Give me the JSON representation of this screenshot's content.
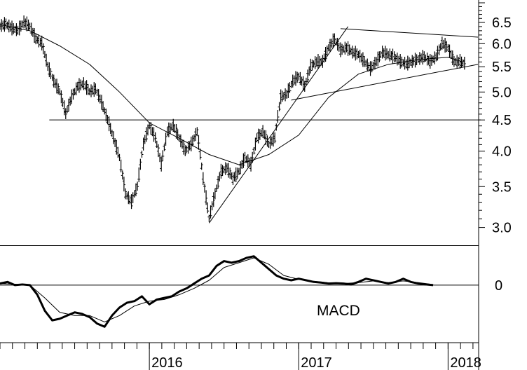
{
  "chart_data": [
    {
      "type": "line",
      "panel": "price",
      "style": "ohlc-bars",
      "yscale": "log",
      "ylim": [
        2.85,
        7.0
      ],
      "yticks": [
        "3.0",
        "3.5",
        "4.0",
        "4.5",
        "5.0",
        "5.5",
        "6.0",
        "6.5"
      ],
      "xticks": [
        "2016",
        "2017",
        "2018"
      ],
      "x_range": [
        2015.0,
        2018.2
      ],
      "price_series": [
        [
          2015.0,
          6.4
        ],
        [
          2015.04,
          6.45
        ],
        [
          2015.08,
          6.35
        ],
        [
          2015.12,
          6.3
        ],
        [
          2015.16,
          6.5
        ],
        [
          2015.2,
          6.4
        ],
        [
          2015.24,
          6.1
        ],
        [
          2015.28,
          6.0
        ],
        [
          2015.32,
          5.5
        ],
        [
          2015.36,
          5.2
        ],
        [
          2015.4,
          5.0
        ],
        [
          2015.44,
          4.6
        ],
        [
          2015.48,
          4.9
        ],
        [
          2015.52,
          5.1
        ],
        [
          2015.56,
          5.15
        ],
        [
          2015.6,
          5.0
        ],
        [
          2015.64,
          5.05
        ],
        [
          2015.68,
          4.8
        ],
        [
          2015.72,
          4.5
        ],
        [
          2015.76,
          4.2
        ],
        [
          2015.8,
          3.9
        ],
        [
          2015.84,
          3.4
        ],
        [
          2015.88,
          3.3
        ],
        [
          2015.92,
          3.5
        ],
        [
          2015.96,
          4.1
        ],
        [
          2016.0,
          4.4
        ],
        [
          2016.04,
          4.2
        ],
        [
          2016.08,
          3.8
        ],
        [
          2016.12,
          4.3
        ],
        [
          2016.16,
          4.4
        ],
        [
          2016.2,
          4.2
        ],
        [
          2016.24,
          4.0
        ],
        [
          2016.28,
          4.1
        ],
        [
          2016.32,
          4.3
        ],
        [
          2016.36,
          3.6
        ],
        [
          2016.4,
          3.1
        ],
        [
          2016.44,
          3.4
        ],
        [
          2016.48,
          3.7
        ],
        [
          2016.52,
          3.75
        ],
        [
          2016.56,
          3.6
        ],
        [
          2016.6,
          3.7
        ],
        [
          2016.64,
          3.9
        ],
        [
          2016.68,
          3.8
        ],
        [
          2016.72,
          4.2
        ],
        [
          2016.76,
          4.3
        ],
        [
          2016.8,
          4.1
        ],
        [
          2016.84,
          4.2
        ],
        [
          2016.88,
          4.9
        ],
        [
          2016.92,
          4.95
        ],
        [
          2016.96,
          5.2
        ],
        [
          2017.0,
          5.3
        ],
        [
          2017.04,
          5.1
        ],
        [
          2017.08,
          5.5
        ],
        [
          2017.12,
          5.6
        ],
        [
          2017.16,
          5.6
        ],
        [
          2017.2,
          5.9
        ],
        [
          2017.24,
          6.1
        ],
        [
          2017.28,
          5.85
        ],
        [
          2017.32,
          5.9
        ],
        [
          2017.36,
          5.8
        ],
        [
          2017.4,
          5.75
        ],
        [
          2017.44,
          5.6
        ],
        [
          2017.48,
          5.45
        ],
        [
          2017.52,
          5.6
        ],
        [
          2017.56,
          5.8
        ],
        [
          2017.6,
          5.75
        ],
        [
          2017.64,
          5.7
        ],
        [
          2017.68,
          5.6
        ],
        [
          2017.72,
          5.55
        ],
        [
          2017.76,
          5.6
        ],
        [
          2017.8,
          5.65
        ],
        [
          2017.84,
          5.7
        ],
        [
          2017.88,
          5.6
        ],
        [
          2017.92,
          5.7
        ],
        [
          2017.96,
          6.0
        ],
        [
          2018.0,
          5.9
        ],
        [
          2018.04,
          5.6
        ],
        [
          2018.08,
          5.6
        ],
        [
          2018.12,
          5.55
        ]
      ],
      "moving_average": [
        [
          2015.0,
          6.45
        ],
        [
          2015.2,
          6.3
        ],
        [
          2015.4,
          5.95
        ],
        [
          2015.6,
          5.55
        ],
        [
          2015.8,
          5.0
        ],
        [
          2016.0,
          4.45
        ],
        [
          2016.2,
          4.2
        ],
        [
          2016.4,
          3.95
        ],
        [
          2016.6,
          3.8
        ],
        [
          2016.8,
          3.95
        ],
        [
          2017.0,
          4.25
        ],
        [
          2017.2,
          4.9
        ],
        [
          2017.4,
          5.35
        ],
        [
          2017.6,
          5.55
        ],
        [
          2017.8,
          5.65
        ],
        [
          2018.0,
          5.7
        ],
        [
          2018.1,
          5.6
        ]
      ],
      "trendlines": [
        {
          "from": [
            2016.4,
            3.05
          ],
          "to": [
            2017.33,
            6.4
          ]
        },
        {
          "from": [
            2017.28,
            6.35
          ],
          "to": [
            2018.2,
            6.15
          ]
        },
        {
          "from": [
            2016.95,
            4.85
          ],
          "to": [
            2018.2,
            5.55
          ]
        },
        {
          "from": [
            2015.33,
            4.5
          ],
          "to": [
            2018.22,
            4.5
          ]
        }
      ]
    },
    {
      "type": "line",
      "panel": "indicator",
      "title": "MACD",
      "yticks": [
        "0"
      ],
      "ylim": [
        -1.6,
        1.2
      ],
      "series": [
        {
          "style": "thick",
          "points": [
            [
              2015.0,
              0.05
            ],
            [
              2015.05,
              0.1
            ],
            [
              2015.1,
              0.0
            ],
            [
              2015.15,
              0.02
            ],
            [
              2015.2,
              0.0
            ],
            [
              2015.25,
              -0.3
            ],
            [
              2015.3,
              -0.8
            ],
            [
              2015.35,
              -1.1
            ],
            [
              2015.4,
              -1.05
            ],
            [
              2015.45,
              -0.95
            ],
            [
              2015.5,
              -0.85
            ],
            [
              2015.55,
              -0.9
            ],
            [
              2015.6,
              -1.0
            ],
            [
              2015.65,
              -1.2
            ],
            [
              2015.7,
              -1.3
            ],
            [
              2015.75,
              -0.95
            ],
            [
              2015.8,
              -0.7
            ],
            [
              2015.85,
              -0.55
            ],
            [
              2015.9,
              -0.5
            ],
            [
              2015.95,
              -0.35
            ],
            [
              2016.0,
              -0.6
            ],
            [
              2016.05,
              -0.45
            ],
            [
              2016.1,
              -0.4
            ],
            [
              2016.15,
              -0.35
            ],
            [
              2016.2,
              -0.2
            ],
            [
              2016.25,
              -0.1
            ],
            [
              2016.3,
              0.05
            ],
            [
              2016.35,
              0.2
            ],
            [
              2016.4,
              0.3
            ],
            [
              2016.45,
              0.6
            ],
            [
              2016.5,
              0.75
            ],
            [
              2016.55,
              0.7
            ],
            [
              2016.6,
              0.75
            ],
            [
              2016.65,
              0.85
            ],
            [
              2016.7,
              0.9
            ],
            [
              2016.75,
              0.7
            ],
            [
              2016.8,
              0.5
            ],
            [
              2016.85,
              0.3
            ],
            [
              2016.9,
              0.2
            ],
            [
              2016.95,
              0.15
            ],
            [
              2017.0,
              0.2
            ],
            [
              2017.05,
              0.15
            ],
            [
              2017.1,
              0.1
            ],
            [
              2017.15,
              0.08
            ],
            [
              2017.2,
              0.05
            ],
            [
              2017.25,
              0.06
            ],
            [
              2017.3,
              0.05
            ],
            [
              2017.35,
              0.02
            ],
            [
              2017.4,
              0.1
            ],
            [
              2017.45,
              0.2
            ],
            [
              2017.5,
              0.15
            ],
            [
              2017.55,
              0.1
            ],
            [
              2017.6,
              0.05
            ],
            [
              2017.65,
              0.1
            ],
            [
              2017.7,
              0.2
            ],
            [
              2017.75,
              0.1
            ],
            [
              2017.8,
              0.05
            ],
            [
              2017.85,
              0.02
            ],
            [
              2017.9,
              0.0
            ]
          ]
        },
        {
          "style": "thin",
          "points": [
            [
              2015.0,
              0.05
            ],
            [
              2015.1,
              0.03
            ],
            [
              2015.2,
              0.0
            ],
            [
              2015.3,
              -0.4
            ],
            [
              2015.4,
              -0.85
            ],
            [
              2015.5,
              -0.95
            ],
            [
              2015.6,
              -0.95
            ],
            [
              2015.7,
              -1.15
            ],
            [
              2015.8,
              -0.95
            ],
            [
              2015.9,
              -0.65
            ],
            [
              2016.0,
              -0.5
            ],
            [
              2016.1,
              -0.45
            ],
            [
              2016.2,
              -0.3
            ],
            [
              2016.3,
              -0.1
            ],
            [
              2016.4,
              0.15
            ],
            [
              2016.5,
              0.55
            ],
            [
              2016.6,
              0.7
            ],
            [
              2016.7,
              0.85
            ],
            [
              2016.8,
              0.65
            ],
            [
              2016.9,
              0.3
            ],
            [
              2017.0,
              0.18
            ],
            [
              2017.1,
              0.12
            ],
            [
              2017.2,
              0.07
            ],
            [
              2017.3,
              0.05
            ],
            [
              2017.4,
              0.08
            ],
            [
              2017.5,
              0.13
            ],
            [
              2017.6,
              0.08
            ],
            [
              2017.7,
              0.13
            ],
            [
              2017.8,
              0.08
            ],
            [
              2017.9,
              0.02
            ]
          ]
        }
      ]
    }
  ]
}
